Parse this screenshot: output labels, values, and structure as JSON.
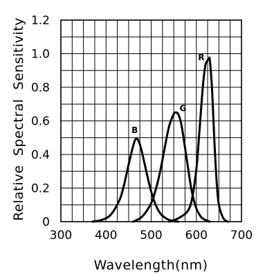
{
  "chart_data": {
    "type": "line",
    "xlabel": "Wavelength(nm)",
    "ylabel": "Relative  Spectral  Sensitivity",
    "xlim": [
      300,
      700
    ],
    "ylim": [
      0,
      1.2
    ],
    "x_ticks": [
      300,
      400,
      500,
      600,
      700
    ],
    "x_tick_labels": [
      "300",
      "400",
      "500",
      "600",
      "700"
    ],
    "y_ticks": [
      0,
      0.2,
      0.4,
      0.6,
      0.8,
      1.0,
      1.2
    ],
    "y_tick_labels": [
      "0",
      "0.2",
      "0.4",
      "0.6",
      "0.8",
      "1.0",
      "1.2"
    ],
    "grid": true,
    "series": [
      {
        "name": "B",
        "x": [
          370,
          390,
          410,
          430,
          440,
          450,
          460,
          465,
          470,
          475,
          480,
          490,
          500,
          510,
          520,
          530,
          540,
          550,
          560
        ],
        "y": [
          0.0,
          0.01,
          0.04,
          0.13,
          0.22,
          0.34,
          0.45,
          0.49,
          0.49,
          0.46,
          0.41,
          0.29,
          0.18,
          0.1,
          0.05,
          0.025,
          0.01,
          0.003,
          0.0
        ]
      },
      {
        "name": "G",
        "x": [
          460,
          480,
          500,
          510,
          520,
          530,
          540,
          550,
          555,
          560,
          565,
          570,
          580,
          590,
          600,
          610,
          620,
          630
        ],
        "y": [
          0.0,
          0.03,
          0.11,
          0.19,
          0.3,
          0.44,
          0.57,
          0.64,
          0.65,
          0.64,
          0.6,
          0.53,
          0.35,
          0.18,
          0.08,
          0.03,
          0.01,
          0.0
        ]
      },
      {
        "name": "R",
        "x": [
          540,
          560,
          580,
          590,
          600,
          605,
          610,
          615,
          620,
          625,
          628,
          630,
          635,
          640,
          645,
          650,
          660,
          670
        ],
        "y": [
          0.0,
          0.02,
          0.06,
          0.13,
          0.31,
          0.47,
          0.65,
          0.82,
          0.93,
          0.96,
          0.97,
          0.96,
          0.78,
          0.48,
          0.24,
          0.1,
          0.02,
          0.0
        ]
      }
    ]
  }
}
